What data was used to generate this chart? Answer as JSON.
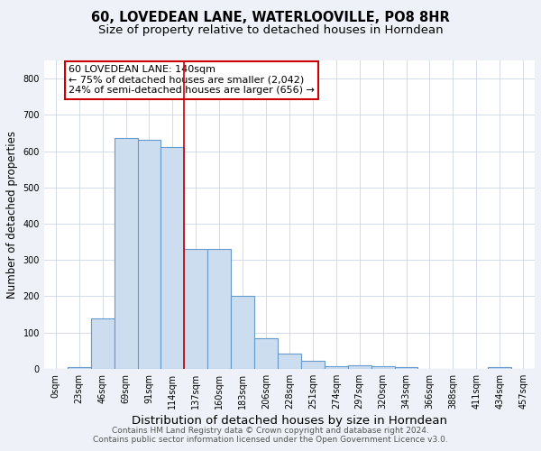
{
  "title_line1": "60, LOVEDEAN LANE, WATERLOOVILLE, PO8 8HR",
  "title_line2": "Size of property relative to detached houses in Horndean",
  "xlabel": "Distribution of detached houses by size in Horndean",
  "ylabel": "Number of detached properties",
  "footer_line1": "Contains HM Land Registry data © Crown copyright and database right 2024.",
  "footer_line2": "Contains public sector information licensed under the Open Government Licence v3.0.",
  "annotation_line1": "60 LOVEDEAN LANE: 140sqm",
  "annotation_line2": "← 75% of detached houses are smaller (2,042)",
  "annotation_line3": "24% of semi-detached houses are larger (656) →",
  "bar_labels": [
    "0sqm",
    "23sqm",
    "46sqm",
    "69sqm",
    "91sqm",
    "114sqm",
    "137sqm",
    "160sqm",
    "183sqm",
    "206sqm",
    "228sqm",
    "251sqm",
    "274sqm",
    "297sqm",
    "320sqm",
    "343sqm",
    "366sqm",
    "388sqm",
    "411sqm",
    "434sqm",
    "457sqm"
  ],
  "bar_values": [
    0,
    5,
    140,
    635,
    630,
    610,
    330,
    330,
    200,
    85,
    43,
    22,
    8,
    10,
    8,
    5,
    0,
    0,
    0,
    5,
    0
  ],
  "bar_color": "#ccddf0",
  "bar_edge_color": "#6699cc",
  "bar_linewidth": 0.8,
  "vline_x_index": 5.5,
  "vline_color": "#cc0000",
  "vline_linewidth": 1.2,
  "bg_color": "#eef2f8",
  "plot_bg_color": "#ffffff",
  "grid_color": "#ccd5e5",
  "ylim": [
    0,
    850
  ],
  "yticks": [
    0,
    100,
    200,
    300,
    400,
    500,
    600,
    700,
    800
  ],
  "annot_box_color": "#ffffff",
  "annot_box_edge": "#cc0000",
  "title1_fontsize": 10.5,
  "title2_fontsize": 9.5,
  "xlabel_fontsize": 9.5,
  "ylabel_fontsize": 8.5,
  "tick_fontsize": 7,
  "footer_fontsize": 6.5,
  "annot_fontsize": 8
}
